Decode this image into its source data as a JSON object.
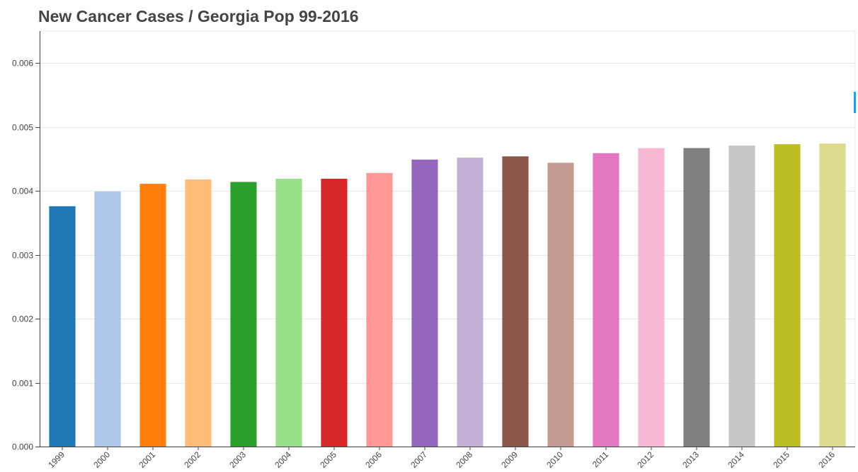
{
  "chart_data": {
    "type": "bar",
    "title": "New Cancer Cases / Georgia Pop 99-2016",
    "xlabel": "",
    "ylabel": "",
    "ylim": [
      0,
      0.0065
    ],
    "yticks": [
      "0.000",
      "0.001",
      "0.002",
      "0.003",
      "0.004",
      "0.005",
      "0.006"
    ],
    "ytick_values": [
      0,
      0.001,
      0.002,
      0.003,
      0.004,
      0.005,
      0.006
    ],
    "grid": true,
    "categories": [
      "1999",
      "2000",
      "2001",
      "2002",
      "2003",
      "2004",
      "2005",
      "2006",
      "2007",
      "2008",
      "2009",
      "2010",
      "2011",
      "2012",
      "2013",
      "2014",
      "2015",
      "2016"
    ],
    "values": [
      0.00376,
      0.00399,
      0.00411,
      0.00418,
      0.00414,
      0.00419,
      0.00419,
      0.00428,
      0.00449,
      0.00452,
      0.00454,
      0.00444,
      0.00459,
      0.00467,
      0.00467,
      0.00471,
      0.00473,
      0.00474
    ],
    "colors": [
      "#1f77b4",
      "#aec7e8",
      "#ff7f0e",
      "#ffbb78",
      "#2ca02c",
      "#98df8a",
      "#d62728",
      "#ff9896",
      "#9467bd",
      "#c5b0d5",
      "#8c564b",
      "#c49c94",
      "#e377c2",
      "#f7b6d2",
      "#7f7f7f",
      "#c7c7c7",
      "#bcbd22",
      "#dbdb8d"
    ]
  }
}
